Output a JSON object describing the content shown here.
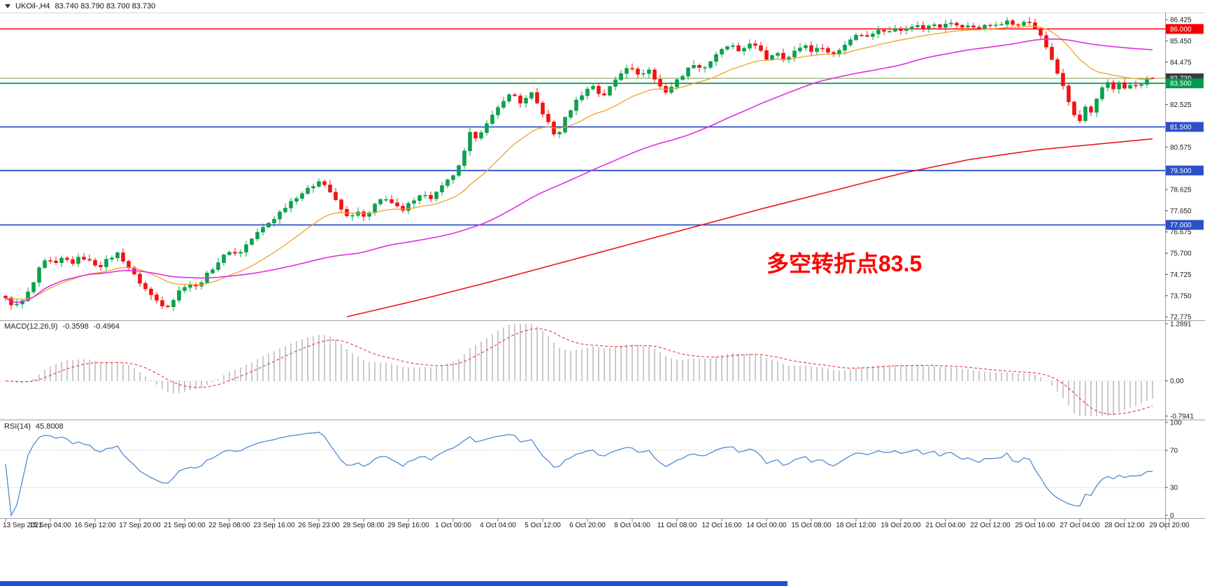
{
  "header": {
    "symbol_period": "UKOil-,H4",
    "ohlc_text": "83.740 83.790 83.700 83.730"
  },
  "taskbar": {
    "color": "#1d4fd7"
  },
  "chart_data": {
    "type": "candlestick",
    "symbol": "UKOil-",
    "timeframe": "H4",
    "bars": 206,
    "ylim": [
      72.62,
      86.75
    ],
    "last_bar": {
      "open": 83.74,
      "high": 83.79,
      "low": 83.7,
      "close": 83.73
    },
    "candle_up_color": "#0aa14e",
    "candle_down_color": "#f31212",
    "close_path": [
      [
        0.0,
        73.6
      ],
      [
        0.008,
        73.25
      ],
      [
        0.016,
        73.55
      ],
      [
        0.024,
        74.3
      ],
      [
        0.03,
        75.05
      ],
      [
        0.036,
        75.4
      ],
      [
        0.043,
        75.15
      ],
      [
        0.05,
        75.5
      ],
      [
        0.058,
        75.25
      ],
      [
        0.066,
        75.55
      ],
      [
        0.074,
        75.3
      ],
      [
        0.082,
        75.1
      ],
      [
        0.09,
        75.45
      ],
      [
        0.098,
        75.7
      ],
      [
        0.106,
        75.15
      ],
      [
        0.114,
        74.55
      ],
      [
        0.122,
        74.05
      ],
      [
        0.129,
        73.65
      ],
      [
        0.136,
        73.35
      ],
      [
        0.143,
        73.3
      ],
      [
        0.151,
        73.95
      ],
      [
        0.159,
        74.35
      ],
      [
        0.165,
        74.1
      ],
      [
        0.173,
        74.55
      ],
      [
        0.181,
        75.05
      ],
      [
        0.189,
        75.5
      ],
      [
        0.196,
        75.85
      ],
      [
        0.202,
        75.6
      ],
      [
        0.21,
        76.1
      ],
      [
        0.218,
        76.55
      ],
      [
        0.226,
        76.95
      ],
      [
        0.234,
        77.3
      ],
      [
        0.242,
        77.75
      ],
      [
        0.25,
        78.15
      ],
      [
        0.258,
        78.45
      ],
      [
        0.266,
        78.7
      ],
      [
        0.274,
        79.1
      ],
      [
        0.282,
        78.6
      ],
      [
        0.29,
        77.9
      ],
      [
        0.298,
        77.35
      ],
      [
        0.306,
        77.6
      ],
      [
        0.314,
        77.3
      ],
      [
        0.322,
        77.9
      ],
      [
        0.33,
        78.3
      ],
      [
        0.338,
        77.95
      ],
      [
        0.346,
        77.6
      ],
      [
        0.354,
        78.1
      ],
      [
        0.362,
        78.45
      ],
      [
        0.37,
        78.2
      ],
      [
        0.378,
        78.6
      ],
      [
        0.386,
        79.05
      ],
      [
        0.392,
        79.4
      ],
      [
        0.398,
        79.9
      ],
      [
        0.404,
        81.2
      ],
      [
        0.41,
        81.05
      ],
      [
        0.418,
        81.5
      ],
      [
        0.426,
        82.1
      ],
      [
        0.434,
        82.75
      ],
      [
        0.442,
        83.05
      ],
      [
        0.45,
        82.55
      ],
      [
        0.458,
        83.05
      ],
      [
        0.466,
        82.35
      ],
      [
        0.474,
        81.6
      ],
      [
        0.48,
        80.95
      ],
      [
        0.488,
        81.9
      ],
      [
        0.496,
        82.6
      ],
      [
        0.504,
        83.1
      ],
      [
        0.512,
        83.4
      ],
      [
        0.52,
        82.85
      ],
      [
        0.528,
        83.4
      ],
      [
        0.536,
        83.95
      ],
      [
        0.544,
        84.4
      ],
      [
        0.552,
        83.8
      ],
      [
        0.56,
        84.2
      ],
      [
        0.568,
        83.5
      ],
      [
        0.576,
        83.1
      ],
      [
        0.584,
        83.55
      ],
      [
        0.592,
        84.0
      ],
      [
        0.6,
        84.4
      ],
      [
        0.608,
        84.15
      ],
      [
        0.616,
        84.6
      ],
      [
        0.624,
        85.0
      ],
      [
        0.632,
        85.3
      ],
      [
        0.64,
        84.85
      ],
      [
        0.648,
        85.4
      ],
      [
        0.656,
        85.1
      ],
      [
        0.664,
        84.6
      ],
      [
        0.672,
        85.0
      ],
      [
        0.68,
        84.55
      ],
      [
        0.688,
        84.95
      ],
      [
        0.696,
        85.3
      ],
      [
        0.704,
        84.95
      ],
      [
        0.712,
        85.2
      ],
      [
        0.72,
        84.75
      ],
      [
        0.728,
        85.1
      ],
      [
        0.736,
        85.5
      ],
      [
        0.744,
        85.85
      ],
      [
        0.752,
        85.6
      ],
      [
        0.76,
        86.0
      ],
      [
        0.768,
        85.8
      ],
      [
        0.776,
        86.1
      ],
      [
        0.784,
        85.9
      ],
      [
        0.792,
        86.2
      ],
      [
        0.8,
        86.05
      ],
      [
        0.808,
        86.3
      ],
      [
        0.816,
        86.1
      ],
      [
        0.824,
        86.3
      ],
      [
        0.832,
        86.05
      ],
      [
        0.84,
        86.2
      ],
      [
        0.848,
        85.95
      ],
      [
        0.856,
        86.3
      ],
      [
        0.864,
        86.1
      ],
      [
        0.872,
        86.35
      ],
      [
        0.88,
        86.15
      ],
      [
        0.888,
        86.4
      ],
      [
        0.896,
        86.15
      ],
      [
        0.902,
        85.7
      ],
      [
        0.908,
        85.1
      ],
      [
        0.914,
        84.4
      ],
      [
        0.92,
        83.6
      ],
      [
        0.926,
        82.75
      ],
      [
        0.932,
        82.0
      ],
      [
        0.937,
        81.75
      ],
      [
        0.942,
        82.45
      ],
      [
        0.947,
        82.05
      ],
      [
        0.952,
        82.85
      ],
      [
        0.957,
        83.4
      ],
      [
        0.962,
        83.6
      ],
      [
        0.967,
        83.2
      ],
      [
        0.972,
        83.6
      ],
      [
        0.977,
        83.15
      ],
      [
        0.982,
        83.5
      ],
      [
        0.987,
        83.3
      ],
      [
        0.992,
        83.6
      ],
      [
        1.0,
        83.73
      ]
    ],
    "moving_averages": [
      {
        "name": "ma-fast",
        "type": "ema",
        "period": 20,
        "color": "#f0a030"
      },
      {
        "name": "ma-mid",
        "type": "sma",
        "period": 64,
        "color": "#e02ee0"
      },
      {
        "name": "ma-slow",
        "type": "path",
        "color": "#ee1515",
        "path": [
          [
            0.295,
            72.75
          ],
          [
            0.36,
            73.55
          ],
          [
            0.42,
            74.35
          ],
          [
            0.48,
            75.2
          ],
          [
            0.54,
            76.05
          ],
          [
            0.6,
            76.9
          ],
          [
            0.66,
            77.75
          ],
          [
            0.72,
            78.55
          ],
          [
            0.78,
            79.35
          ],
          [
            0.84,
            80.0
          ],
          [
            0.9,
            80.45
          ],
          [
            0.95,
            80.7
          ],
          [
            1.0,
            80.95
          ]
        ]
      }
    ],
    "hlines": [
      {
        "v": 86.0,
        "label": "86.000",
        "color": "#ff0000",
        "width": 1.5
      },
      {
        "v": 83.73,
        "label": "83.730",
        "color": "#7f9a52",
        "width": 1.1
      },
      {
        "v": 83.5,
        "label": "83.500",
        "color": "#00a651",
        "width": 1.8
      },
      {
        "v": 81.5,
        "label": "81.500",
        "color": "#2b50c8",
        "width": 1.8
      },
      {
        "v": 79.5,
        "label": "79.500",
        "color": "#2b50c8",
        "width": 1.8
      },
      {
        "v": 77.0,
        "label": "77.000",
        "color": "#2b50c8",
        "width": 1.8
      }
    ],
    "price_axis": {
      "ticks": [
        {
          "label": "86.425",
          "v": 86.425
        },
        {
          "label": "85.450",
          "v": 85.45
        },
        {
          "label": "84.475",
          "v": 84.475
        },
        {
          "label": "82.525",
          "v": 82.525
        },
        {
          "label": "80.575",
          "v": 80.575
        },
        {
          "label": "78.625",
          "v": 78.625
        },
        {
          "label": "77.650",
          "v": 77.65
        },
        {
          "label": "76.675",
          "v": 76.675
        },
        {
          "label": "75.700",
          "v": 75.7
        },
        {
          "label": "74.725",
          "v": 74.725
        },
        {
          "label": "73.750",
          "v": 73.75
        },
        {
          "label": "72.775",
          "v": 72.775
        }
      ],
      "badges": [
        {
          "label": "86.000",
          "v": 86.0,
          "bg": "#f20000"
        },
        {
          "label": "83.730",
          "v": 83.73,
          "bg": "#3c3c3c"
        },
        {
          "label": "83.500",
          "v": 83.5,
          "bg": "#009a4e"
        },
        {
          "label": "81.500",
          "v": 81.5,
          "bg": "#2b50c8"
        },
        {
          "label": "79.500",
          "v": 79.5,
          "bg": "#2b50c8"
        },
        {
          "label": "77.000",
          "v": 77.0,
          "bg": "#2b50c8"
        }
      ]
    },
    "time_axis": {
      "bars_per_label": 8,
      "labels": [
        "13 Sep 2021",
        "15 Sep 04:00",
        "16 Sep 12:00",
        "17 Sep 20:00",
        "21 Sep 00:00",
        "22 Sep 08:00",
        "23 Sep 16:00",
        "26 Sep 23:00",
        "28 Sep 08:00",
        "29 Sep 16:00",
        "1 Oct 00:00",
        "4 Oct 04:00",
        "5 Oct 12:00",
        "6 Oct 20:00",
        "8 Oct 04:00",
        "11 Oct 08:00",
        "12 Oct 16:00",
        "14 Oct 00:00",
        "15 Oct 08:00",
        "18 Oct 12:00",
        "19 Oct 20:00",
        "21 Oct 04:00",
        "22 Oct 12:00",
        "25 Oct 16:00",
        "27 Oct 04:00",
        "28 Oct 12:00",
        "29 Oct 20:00"
      ]
    },
    "annotation": {
      "text": "多空转折点83.5",
      "color": "#ff0000"
    },
    "indicators": [
      {
        "name": "MACD(12,26,9)",
        "value1": "-0.3598",
        "value2": "-0.4964",
        "max": 1.2891,
        "min": -0.7941,
        "scale_labels": {
          "top": "1.2891",
          "zero": "0.00",
          "bottom": "-0.7941"
        },
        "hist_color": "#b3b3b3",
        "signal_color": "#e53935"
      },
      {
        "name": "RSI(14)",
        "value": "45.8008",
        "line_color": "#4d8bd6",
        "levels": [
          {
            "label": "100",
            "v": 100,
            "dashed": false
          },
          {
            "label": "70",
            "v": 70,
            "dashed": true
          },
          {
            "label": "30",
            "v": 30,
            "dashed": true
          },
          {
            "label": "0",
            "v": 0,
            "dashed": false
          }
        ]
      }
    ]
  }
}
